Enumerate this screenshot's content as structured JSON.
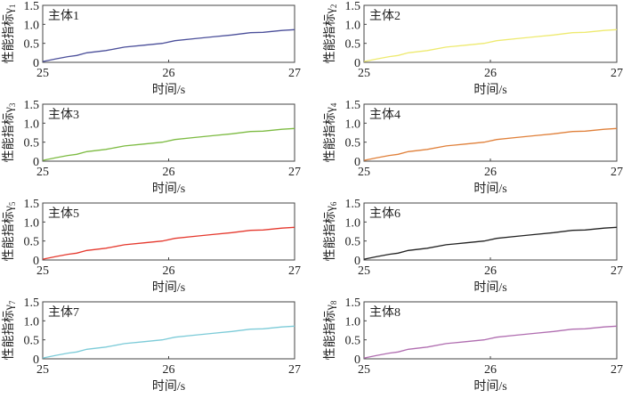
{
  "chart_data": [
    {
      "type": "line",
      "title": "主体1",
      "xlabel": "时间/s",
      "ylabel": "性能指标γ",
      "ylabel_sub": "1",
      "color": "#4b4f9a"
    },
    {
      "type": "line",
      "title": "主体2",
      "xlabel": "时间/s",
      "ylabel": "性能指标γ",
      "ylabel_sub": "2",
      "color": "#eeea70"
    },
    {
      "type": "line",
      "title": "主体3",
      "xlabel": "时间/s",
      "ylabel": "性能指标γ",
      "ylabel_sub": "3",
      "color": "#7dbb42"
    },
    {
      "type": "line",
      "title": "主体4",
      "xlabel": "时间/s",
      "ylabel": "性能指标γ",
      "ylabel_sub": "4",
      "color": "#e0803a"
    },
    {
      "type": "line",
      "title": "主体5",
      "xlabel": "时间/s",
      "ylabel": "性能指标γ",
      "ylabel_sub": "5",
      "color": "#e5392e"
    },
    {
      "type": "line",
      "title": "主体6",
      "xlabel": "时间/s",
      "ylabel": "性能指标γ",
      "ylabel_sub": "6",
      "color": "#222222"
    },
    {
      "type": "line",
      "title": "主体7",
      "xlabel": "时间/s",
      "ylabel": "性能指标γ",
      "ylabel_sub": "7",
      "color": "#7ccbd8"
    },
    {
      "type": "line",
      "title": "主体8",
      "xlabel": "时间/s",
      "ylabel": "性能指标γ",
      "ylabel_sub": "8",
      "color": "#b06db0"
    }
  ],
  "shared": {
    "x": [
      25,
      25.1,
      25.2,
      25.27,
      25.35,
      25.5,
      25.65,
      25.8,
      25.95,
      26.05,
      26.2,
      26.35,
      26.5,
      26.65,
      26.75,
      26.9,
      27
    ],
    "y": [
      0.02,
      0.09,
      0.15,
      0.18,
      0.25,
      0.31,
      0.4,
      0.45,
      0.5,
      0.57,
      0.62,
      0.67,
      0.72,
      0.78,
      0.79,
      0.84,
      0.86
    ],
    "xlim": [
      25,
      27
    ],
    "ylim": [
      0,
      1.5
    ],
    "xticks": [
      "25",
      "26",
      "27"
    ],
    "yticks": [
      "0",
      "0.5",
      "1.0",
      "1.5"
    ],
    "grid": false
  }
}
